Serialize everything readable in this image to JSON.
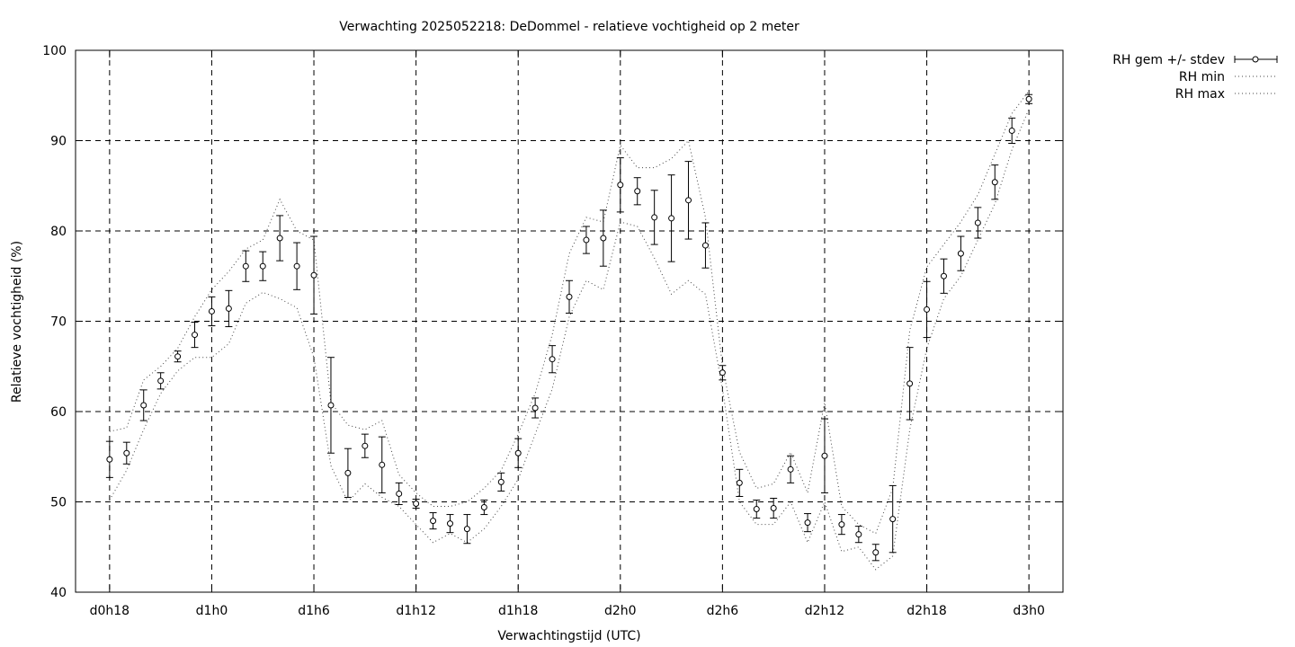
{
  "chart_data": {
    "type": "line",
    "title": "Verwachting 2025052218: DeDommel - relatieve vochtigheid op 2 meter",
    "xlabel": "Verwachtingstijd (UTC)",
    "ylabel": "Relatieve vochtigheid (%)",
    "ylim": [
      40,
      100
    ],
    "xlim": [
      16,
      74
    ],
    "grid": true,
    "legend_position": "top-right outside",
    "x_ticks": [
      {
        "x": 18,
        "label": "d0h18"
      },
      {
        "x": 24,
        "label": "d1h0"
      },
      {
        "x": 30,
        "label": "d1h6"
      },
      {
        "x": 36,
        "label": "d1h12"
      },
      {
        "x": 42,
        "label": "d1h18"
      },
      {
        "x": 48,
        "label": "d2h0"
      },
      {
        "x": 54,
        "label": "d2h6"
      },
      {
        "x": 60,
        "label": "d2h12"
      },
      {
        "x": 66,
        "label": "d2h18"
      },
      {
        "x": 72,
        "label": "d3h0"
      }
    ],
    "y_ticks": [
      40,
      50,
      60,
      70,
      80,
      90,
      100
    ],
    "x": [
      18,
      19,
      20,
      21,
      22,
      23,
      24,
      25,
      26,
      27,
      28,
      29,
      30,
      31,
      32,
      33,
      34,
      35,
      36,
      37,
      38,
      39,
      40,
      41,
      42,
      43,
      44,
      45,
      46,
      47,
      48,
      49,
      50,
      51,
      52,
      53,
      54,
      55,
      56,
      57,
      58,
      59,
      60,
      61,
      62,
      63,
      64,
      65,
      66,
      67,
      68,
      69,
      70,
      71,
      72
    ],
    "series": [
      {
        "name": "RH gem +/- stdev",
        "style": "points-errorbars",
        "values": [
          54.7,
          55.4,
          60.7,
          63.4,
          66.1,
          68.5,
          71.1,
          71.4,
          76.1,
          76.1,
          79.2,
          76.1,
          75.1,
          60.7,
          53.2,
          56.2,
          54.1,
          50.9,
          49.8,
          47.9,
          47.6,
          47.0,
          49.4,
          52.2,
          55.4,
          60.4,
          65.8,
          72.7,
          79.0,
          79.2,
          85.1,
          84.4,
          81.5,
          81.4,
          83.4,
          78.4,
          64.3,
          52.1,
          49.2,
          49.3,
          53.6,
          47.7,
          55.1,
          47.5,
          46.4,
          44.4,
          48.1,
          63.1,
          71.3,
          75.0,
          77.5,
          80.9,
          85.4,
          91.1,
          94.6
        ],
        "errors": [
          2.0,
          1.2,
          1.7,
          0.9,
          0.6,
          1.4,
          1.6,
          2.0,
          1.7,
          1.6,
          2.5,
          2.6,
          4.3,
          5.3,
          2.7,
          1.3,
          3.1,
          1.2,
          0.5,
          0.9,
          1.0,
          1.6,
          0.8,
          1.0,
          1.6,
          1.1,
          1.5,
          1.8,
          1.5,
          3.1,
          3.0,
          1.5,
          3.0,
          4.8,
          4.3,
          2.5,
          0.8,
          1.5,
          1.0,
          1.1,
          1.5,
          1.0,
          4.1,
          1.1,
          0.9,
          0.9,
          3.7,
          4.0,
          3.1,
          1.9,
          1.9,
          1.7,
          1.9,
          1.4,
          0.5
        ]
      },
      {
        "name": "RH min",
        "style": "dotted",
        "values": [
          50.2,
          53.5,
          58.0,
          62.0,
          64.5,
          66.0,
          66.0,
          67.5,
          72.0,
          73.2,
          72.5,
          71.5,
          66.0,
          54.0,
          50.0,
          52.0,
          50.5,
          49.5,
          47.5,
          45.5,
          46.5,
          45.5,
          47.0,
          49.5,
          52.5,
          57.5,
          62.5,
          70.5,
          74.5,
          73.5,
          81.0,
          80.5,
          77.0,
          73.0,
          74.5,
          73.0,
          62.5,
          50.0,
          47.5,
          47.5,
          50.0,
          45.5,
          50.0,
          44.5,
          45.0,
          42.5,
          44.0,
          58.0,
          67.0,
          72.5,
          75.0,
          79.0,
          83.0,
          89.0,
          93.5
        ]
      },
      {
        "name": "RH max",
        "style": "dotted",
        "values": [
          57.8,
          58.2,
          63.5,
          65.0,
          67.0,
          70.5,
          73.5,
          75.5,
          78.0,
          79.0,
          83.5,
          80.0,
          79.0,
          61.0,
          58.5,
          58.0,
          59.0,
          53.0,
          51.0,
          49.5,
          49.5,
          50.0,
          51.5,
          53.5,
          57.5,
          62.0,
          68.5,
          77.5,
          81.5,
          81.0,
          89.5,
          87.0,
          87.0,
          88.0,
          90.0,
          81.5,
          65.0,
          55.5,
          51.5,
          52.0,
          55.5,
          51.0,
          61.0,
          49.5,
          47.5,
          46.5,
          51.5,
          69.0,
          76.0,
          78.5,
          81.0,
          84.0,
          88.5,
          93.0,
          95.5
        ]
      }
    ]
  }
}
